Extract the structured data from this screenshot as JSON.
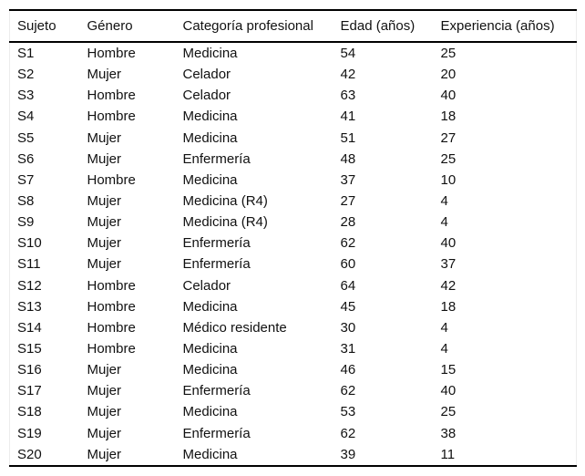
{
  "colors": {
    "background": "#ffffff",
    "text": "#111111",
    "rule": "#000000",
    "side_border": "#ececec"
  },
  "table": {
    "columns": [
      {
        "key": "sujeto",
        "label": "Sujeto"
      },
      {
        "key": "genero",
        "label": "Género"
      },
      {
        "key": "categoria",
        "label": "Categoría profesional"
      },
      {
        "key": "edad",
        "label": "Edad (años)"
      },
      {
        "key": "experiencia",
        "label": "Experiencia (años)"
      }
    ],
    "rows": [
      [
        "S1",
        "Hombre",
        "Medicina",
        "54",
        "25"
      ],
      [
        "S2",
        "Mujer",
        "Celador",
        "42",
        "20"
      ],
      [
        "S3",
        "Hombre",
        "Celador",
        "63",
        "40"
      ],
      [
        "S4",
        "Hombre",
        "Medicina",
        "41",
        "18"
      ],
      [
        "S5",
        "Mujer",
        "Medicina",
        "51",
        "27"
      ],
      [
        "S6",
        "Mujer",
        "Enfermería",
        "48",
        "25"
      ],
      [
        "S7",
        "Hombre",
        "Medicina",
        "37",
        "10"
      ],
      [
        "S8",
        "Mujer",
        "Medicina (R4)",
        "27",
        "4"
      ],
      [
        "S9",
        "Mujer",
        "Medicina (R4)",
        "28",
        "4"
      ],
      [
        "S10",
        "Mujer",
        "Enfermería",
        "62",
        "40"
      ],
      [
        "S11",
        "Mujer",
        "Enfermería",
        "60",
        "37"
      ],
      [
        "S12",
        "Hombre",
        "Celador",
        "64",
        "42"
      ],
      [
        "S13",
        "Hombre",
        "Medicina",
        "45",
        "18"
      ],
      [
        "S14",
        "Hombre",
        "Médico residente",
        "30",
        "4"
      ],
      [
        "S15",
        "Hombre",
        "Medicina",
        "31",
        "4"
      ],
      [
        "S16",
        "Mujer",
        "Medicina",
        "46",
        "15"
      ],
      [
        "S17",
        "Mujer",
        "Enfermería",
        "62",
        "40"
      ],
      [
        "S18",
        "Mujer",
        "Medicina",
        "53",
        "25"
      ],
      [
        "S19",
        "Mujer",
        "Enfermería",
        "62",
        "38"
      ],
      [
        "S20",
        "Mujer",
        "Medicina",
        "39",
        "11"
      ]
    ]
  }
}
